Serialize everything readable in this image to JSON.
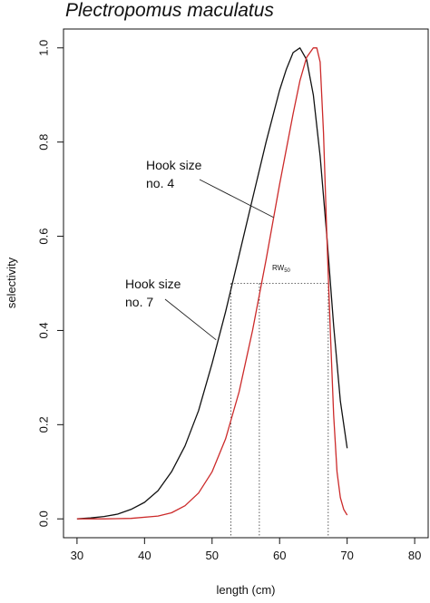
{
  "chart_data": {
    "type": "line",
    "title": "Plectropomus maculatus",
    "xlabel": "length (cm)",
    "ylabel": "selectivity",
    "xlim": [
      28,
      82
    ],
    "ylim": [
      -0.04,
      1.04
    ],
    "xticks": [
      30,
      40,
      50,
      60,
      70,
      80
    ],
    "yticks": [
      0.0,
      0.2,
      0.4,
      0.6,
      0.8,
      1.0
    ],
    "grid": false,
    "legend": "none",
    "series": [
      {
        "name": "Hook size no. 7",
        "color": "#111111",
        "x": [
          30,
          32,
          34,
          36,
          38,
          40,
          42,
          44,
          46,
          48,
          50,
          52,
          54,
          56,
          58,
          60,
          61,
          62,
          63,
          64,
          65,
          66,
          67,
          68,
          69,
          70
        ],
        "y": [
          0.0,
          0.002,
          0.005,
          0.01,
          0.02,
          0.035,
          0.06,
          0.1,
          0.155,
          0.23,
          0.33,
          0.44,
          0.56,
          0.68,
          0.8,
          0.91,
          0.955,
          0.99,
          1.0,
          0.975,
          0.9,
          0.77,
          0.6,
          0.41,
          0.25,
          0.15
        ]
      },
      {
        "name": "Hook size no. 4",
        "color": "#cc2a2a",
        "x": [
          30,
          34,
          38,
          42,
          44,
          46,
          48,
          50,
          52,
          54,
          56,
          58,
          60,
          62,
          63,
          64,
          65,
          65.5,
          66,
          66.5,
          67,
          67.5,
          68,
          68.5,
          69,
          69.5,
          70
        ],
        "y": [
          0.0,
          0.0,
          0.001,
          0.006,
          0.013,
          0.028,
          0.055,
          0.1,
          0.17,
          0.27,
          0.4,
          0.55,
          0.71,
          0.86,
          0.93,
          0.98,
          1.0,
          1.0,
          0.97,
          0.82,
          0.6,
          0.4,
          0.22,
          0.1,
          0.045,
          0.02,
          0.008
        ]
      }
    ],
    "annotations": {
      "label_black_line1": "Hook size",
      "label_black_line2": "no. 4",
      "label_red_line1": "Hook size",
      "label_red_line2": "no. 7",
      "rw_label": "RW",
      "rw_subscript": "50"
    },
    "reference_lines": {
      "y": 0.5,
      "x_vertical": [
        52.8,
        57.0,
        67.2
      ]
    },
    "annotation_leaders": {
      "hook4_end": [
        59.1,
        0.64
      ],
      "hook7_end": [
        50.6,
        0.38
      ]
    }
  }
}
